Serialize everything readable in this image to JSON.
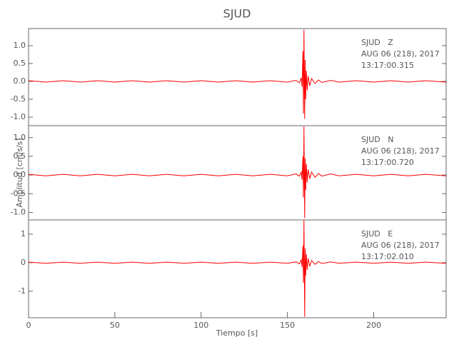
{
  "chart_data": [
    {
      "type": "line",
      "title": "SJUD",
      "annotations": [
        "SJUD   Z",
        "AUG 06 (218), 2017",
        "13:17:00.315"
      ],
      "xlim": [
        0,
        242
      ],
      "ylim": [
        -1.24,
        1.48
      ],
      "yticks": [
        {
          "value": 1.0,
          "label": "1.0"
        },
        {
          "value": 0.5,
          "label": "0.5"
        },
        {
          "value": 0.0,
          "label": "0.0"
        },
        {
          "value": -0.5,
          "label": "-0.5"
        },
        {
          "value": -1.0,
          "label": "-1.0"
        }
      ],
      "series": [
        {
          "color": "#ff0000",
          "x": [
            0,
            10,
            20,
            30,
            40,
            50,
            60,
            70,
            80,
            90,
            100,
            110,
            120,
            130,
            140,
            150,
            155,
            157,
            158,
            158.5,
            159,
            159.3,
            159.6,
            160,
            160.3,
            160.6,
            161,
            161.5,
            162,
            163,
            164,
            166,
            168,
            170,
            175,
            180,
            190,
            200,
            210,
            220,
            230,
            242
          ],
          "values": [
            0.02,
            -0.02,
            0.02,
            -0.02,
            0.02,
            -0.02,
            0.02,
            -0.02,
            0.02,
            -0.02,
            0.02,
            -0.02,
            0.02,
            -0.02,
            0.02,
            -0.02,
            0.03,
            -0.04,
            0.1,
            -0.15,
            0.85,
            -0.9,
            1.45,
            -1.05,
            0.6,
            -0.5,
            0.3,
            -0.25,
            0.15,
            -0.12,
            0.08,
            -0.06,
            0.04,
            -0.03,
            0.03,
            -0.02,
            0.02,
            -0.02,
            0.02,
            -0.02,
            0.02,
            -0.02
          ]
        }
      ]
    },
    {
      "type": "line",
      "ylabel": "Amplitud [cm/s/s]",
      "annotations": [
        "SJUD   N",
        "AUG 06 (218), 2017",
        "13:17:00.720"
      ],
      "xlim": [
        0,
        242
      ],
      "ylim": [
        -1.2,
        1.32
      ],
      "yticks": [
        {
          "value": 1.0,
          "label": "1.0"
        },
        {
          "value": 0.5,
          "label": "0.5"
        },
        {
          "value": 0.0,
          "label": "0.0"
        },
        {
          "value": -0.5,
          "label": "-0.5"
        },
        {
          "value": -1.0,
          "label": "-1.0"
        }
      ],
      "series": [
        {
          "color": "#ff0000",
          "x": [
            0,
            10,
            20,
            30,
            40,
            50,
            60,
            70,
            80,
            90,
            100,
            110,
            120,
            130,
            140,
            150,
            155,
            157,
            158,
            158.5,
            159,
            159.3,
            159.6,
            160,
            160.3,
            160.6,
            161,
            161.5,
            162,
            163,
            164,
            166,
            168,
            170,
            175,
            180,
            190,
            200,
            210,
            220,
            230,
            242
          ],
          "values": [
            0.02,
            -0.02,
            0.02,
            -0.02,
            0.02,
            -0.02,
            0.02,
            -0.02,
            0.02,
            -0.02,
            0.02,
            -0.02,
            0.02,
            -0.02,
            0.02,
            -0.02,
            0.03,
            -0.03,
            0.08,
            -0.12,
            0.5,
            -0.6,
            1.3,
            -1.15,
            0.45,
            -0.4,
            0.3,
            -0.2,
            0.15,
            -0.1,
            0.08,
            -0.06,
            0.04,
            -0.03,
            0.03,
            -0.02,
            0.02,
            -0.02,
            0.02,
            -0.02,
            0.02,
            -0.02
          ]
        }
      ]
    },
    {
      "type": "line",
      "xlabel": "Tiempo [s]",
      "annotations": [
        "SJUD   E",
        "AUG 06 (218), 2017",
        "13:17:02.010"
      ],
      "xlim": [
        0,
        242
      ],
      "ylim": [
        -1.93,
        1.5
      ],
      "xticks": [
        0,
        50,
        100,
        150,
        200
      ],
      "yticks": [
        1,
        0,
        -1
      ],
      "series": [
        {
          "color": "#ff0000",
          "x": [
            0,
            10,
            20,
            30,
            40,
            50,
            60,
            70,
            80,
            90,
            100,
            110,
            120,
            130,
            140,
            150,
            155,
            157,
            158,
            158.5,
            159,
            159.3,
            159.6,
            160,
            160.3,
            160.6,
            161,
            161.5,
            162,
            163,
            164,
            166,
            168,
            170,
            175,
            180,
            190,
            200,
            210,
            220,
            230,
            242
          ],
          "values": [
            0.02,
            -0.02,
            0.02,
            -0.02,
            0.02,
            -0.02,
            0.02,
            -0.02,
            0.02,
            -0.02,
            0.02,
            -0.02,
            0.02,
            -0.02,
            0.02,
            -0.02,
            0.03,
            -0.04,
            0.1,
            -0.15,
            0.6,
            -0.7,
            1.5,
            -1.9,
            0.5,
            -0.45,
            0.3,
            -0.25,
            0.15,
            -0.12,
            0.08,
            -0.06,
            0.04,
            -0.03,
            0.03,
            -0.02,
            0.02,
            -0.02,
            0.02,
            -0.02,
            0.02,
            -0.02
          ]
        }
      ]
    }
  ]
}
